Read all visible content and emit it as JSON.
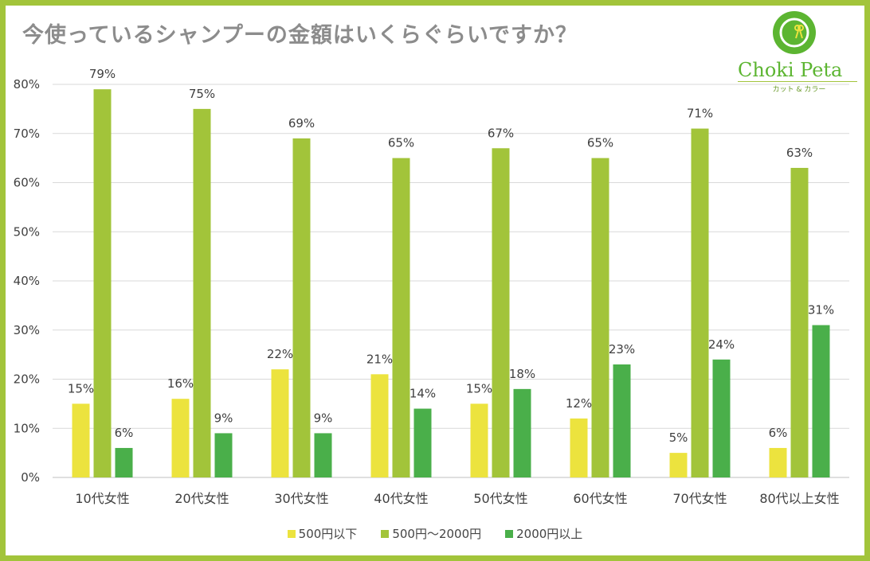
{
  "title": "今使っているシャンプーの金額はいくらぐらいですか？",
  "logo": {
    "name": "Choki Peta",
    "subtitle": "カット & カラー",
    "icon": "scissors-icon"
  },
  "colors": {
    "border": "#a2c43a",
    "series": [
      "#ece33e",
      "#a2c43a",
      "#4aaf4a"
    ],
    "grid": "#d9d9d9",
    "text": "#404040"
  },
  "chart_data": {
    "type": "bar",
    "title": "今使っているシャンプーの金額はいくらぐらいですか？",
    "xlabel": "",
    "ylabel": "",
    "ylim": [
      0,
      80
    ],
    "yticks": [
      "0%",
      "10%",
      "20%",
      "30%",
      "40%",
      "50%",
      "60%",
      "70%",
      "80%"
    ],
    "categories": [
      "10代女性",
      "20代女性",
      "30代女性",
      "40代女性",
      "50代女性",
      "60代女性",
      "70代女性",
      "80代以上女性"
    ],
    "series": [
      {
        "name": "500円以下",
        "values": [
          15,
          16,
          22,
          21,
          15,
          12,
          5,
          6
        ],
        "labels": [
          "15%",
          "16%",
          "22%",
          "21%",
          "15%",
          "12%",
          "5%",
          "6%"
        ]
      },
      {
        "name": "500円〜2000円",
        "values": [
          79,
          75,
          69,
          65,
          67,
          65,
          71,
          63
        ],
        "labels": [
          "79%",
          "75%",
          "69%",
          "65%",
          "67%",
          "65%",
          "71%",
          "63%"
        ]
      },
      {
        "name": "2000円以上",
        "values": [
          6,
          9,
          9,
          14,
          18,
          23,
          24,
          31
        ],
        "labels": [
          "6%",
          "9%",
          "9%",
          "14%",
          "18%",
          "23%",
          "24%",
          "31%"
        ]
      }
    ],
    "legend_position": "bottom",
    "grid": true
  }
}
